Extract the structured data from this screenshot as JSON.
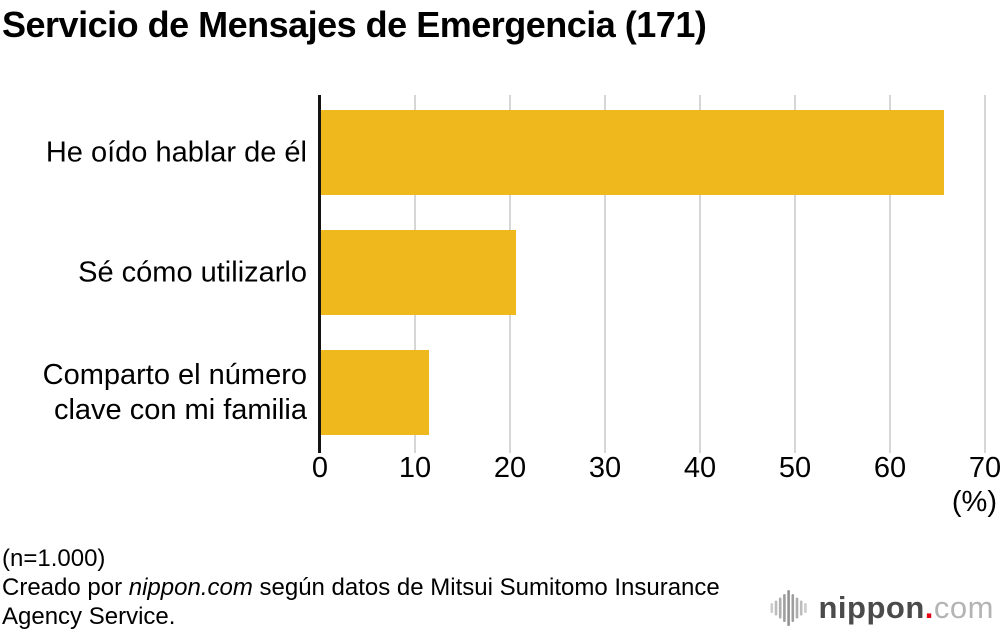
{
  "title": "Servicio de Mensajes de Emergencia (171)",
  "chart_data": {
    "type": "bar",
    "orientation": "horizontal",
    "title": "Servicio de Mensajes de Emergencia (171)",
    "categories": [
      "He oído hablar de él",
      "Sé cómo utilizarlo",
      "Comparto el número\nclave con mi familia"
    ],
    "values": [
      65.6,
      20.5,
      11.4
    ],
    "xlim": [
      0,
      70
    ],
    "x_ticks": [
      "0",
      "10",
      "20",
      "30",
      "40",
      "50",
      "60",
      "70"
    ],
    "x_tick_values": [
      0,
      10,
      20,
      30,
      40,
      50,
      60,
      70
    ],
    "unit_label": "(%)",
    "xlabel": "",
    "ylabel": "",
    "grid": true,
    "legend_position": "none",
    "bar_color": "#efb81c",
    "gridline_color": "#d6d6d6",
    "axis_color": "#141414"
  },
  "footer": {
    "sample_size": "(n=1.000)",
    "credit_prefix": "Creado por ",
    "credit_source": "nippon.com",
    "credit_suffix": " según datos de Mitsui Sumitomo Insurance Agency Service."
  },
  "logo": {
    "wordmark": "nippon",
    "dot": ".",
    "tld": "com",
    "colors": {
      "wordmark": "#4b4b4b",
      "dot": "#e60012",
      "tld": "#b4b4b4",
      "mark": "#a8a8a8"
    }
  }
}
